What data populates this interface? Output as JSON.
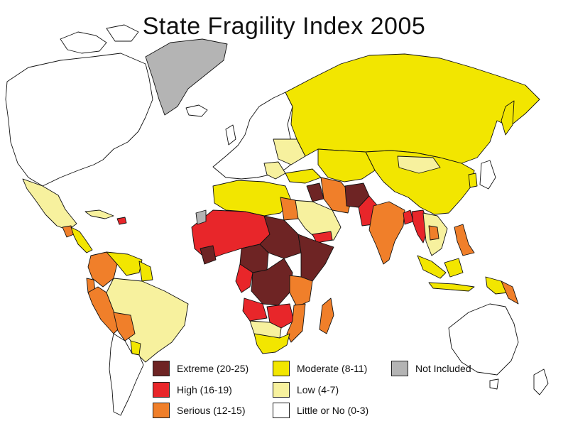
{
  "title": "State Fragility Index 2005",
  "colors": {
    "extreme": "#6e2424",
    "high": "#e8262a",
    "serious": "#f07f2a",
    "moderate": "#f2e600",
    "low": "#f7f19e",
    "little": "#ffffff",
    "not_included": "#b4b4b4"
  },
  "legend": [
    {
      "label": "Extreme (20-25)",
      "color": "#6e2424"
    },
    {
      "label": "High (16-19)",
      "color": "#e8262a"
    },
    {
      "label": "Serious (12-15)",
      "color": "#f07f2a"
    },
    {
      "label": "Moderate (8-11)",
      "color": "#f2e600"
    },
    {
      "label": "Low (4-7)",
      "color": "#f7f19e"
    },
    {
      "label": "Little or No (0-3)",
      "color": "#ffffff"
    },
    {
      "label": "Not Included",
      "color": "#b4b4b4"
    }
  ]
}
